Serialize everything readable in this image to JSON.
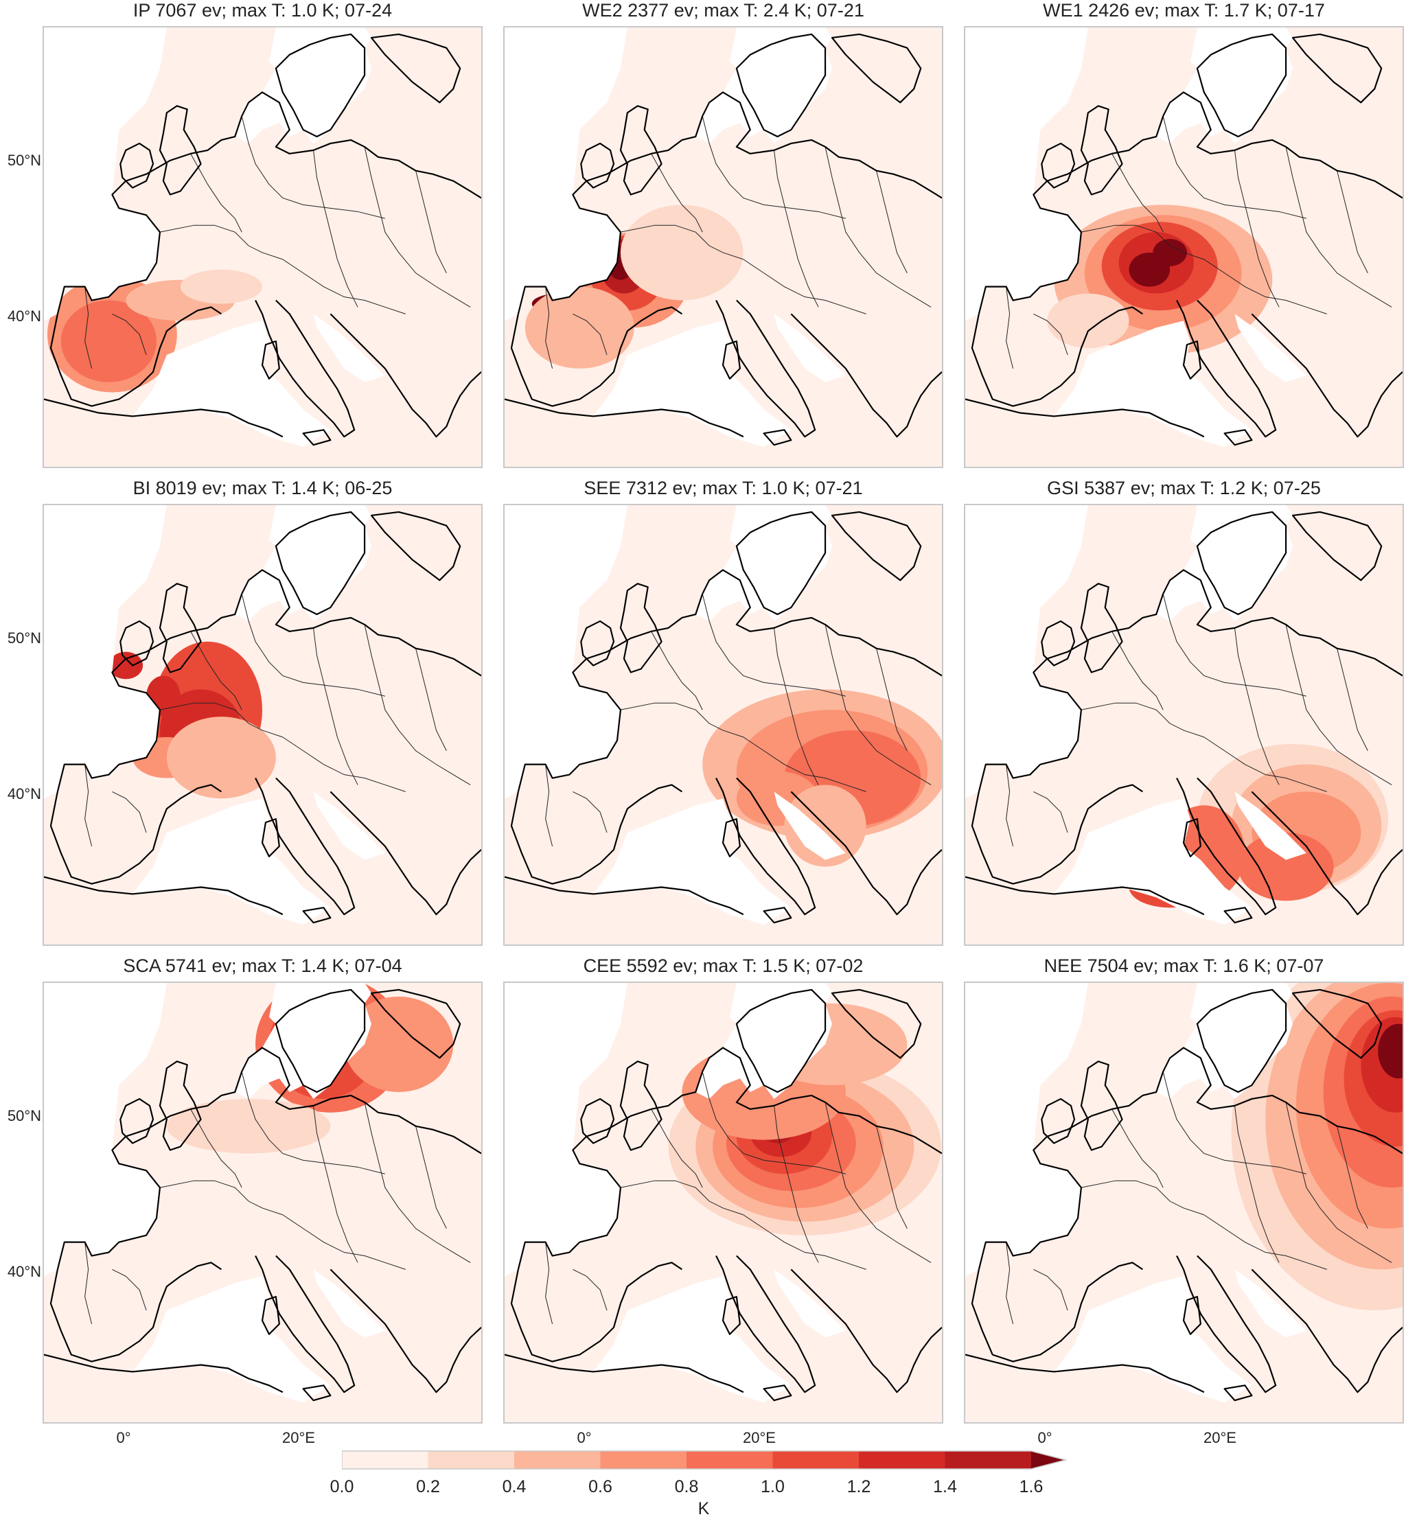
{
  "panels": [
    {
      "title": "IP 7067 ev; max T: 1.0 K; 07-24",
      "region": "IP",
      "events": 7067,
      "max_T_K": 1.0,
      "date": "07-24"
    },
    {
      "title": "WE2 2377 ev; max T: 2.4 K; 07-21",
      "region": "WE2",
      "events": 2377,
      "max_T_K": 2.4,
      "date": "07-21"
    },
    {
      "title": "WE1 2426 ev; max T: 1.7 K; 07-17",
      "region": "WE1",
      "events": 2426,
      "max_T_K": 1.7,
      "date": "07-17"
    },
    {
      "title": "BI 8019 ev; max T: 1.4 K; 06-25",
      "region": "BI",
      "events": 8019,
      "max_T_K": 1.4,
      "date": "06-25"
    },
    {
      "title": "SEE 7312 ev; max T: 1.0 K; 07-21",
      "region": "SEE",
      "events": 7312,
      "max_T_K": 1.0,
      "date": "07-21"
    },
    {
      "title": "GSI 5387 ev; max T: 1.2 K; 07-25",
      "region": "GSI",
      "events": 5387,
      "max_T_K": 1.2,
      "date": "07-25"
    },
    {
      "title": "SCA 5741 ev; max T: 1.4 K; 07-04",
      "region": "SCA",
      "events": 5741,
      "max_T_K": 1.4,
      "date": "07-04"
    },
    {
      "title": "CEE 5592 ev; max T: 1.5 K; 07-02",
      "region": "CEE",
      "events": 5592,
      "max_T_K": 1.5,
      "date": "07-02"
    },
    {
      "title": "NEE 7504 ev; max T: 1.6 K; 07-07",
      "region": "NEE",
      "events": 7504,
      "max_T_K": 1.6,
      "date": "07-07"
    }
  ],
  "axes": {
    "lat_labels": [
      "50°N",
      "40°N"
    ],
    "lon_labels": [
      "0°",
      "20°E"
    ]
  },
  "colorbar": {
    "ticks": [
      "0.0",
      "0.2",
      "0.4",
      "0.6",
      "0.8",
      "1.0",
      "1.2",
      "1.4",
      "1.6"
    ],
    "unit": "K",
    "colors": [
      "#fff0ea",
      "#fdd9c9",
      "#fcb69b",
      "#fb9375",
      "#f56e55",
      "#e94a38",
      "#d42a26",
      "#b71c1f",
      "#7d0613"
    ],
    "extend": "max"
  },
  "colors": {
    "land_base": "#fff0ea",
    "coastline": "#000000",
    "panel_border": "#c8c8c8"
  }
}
